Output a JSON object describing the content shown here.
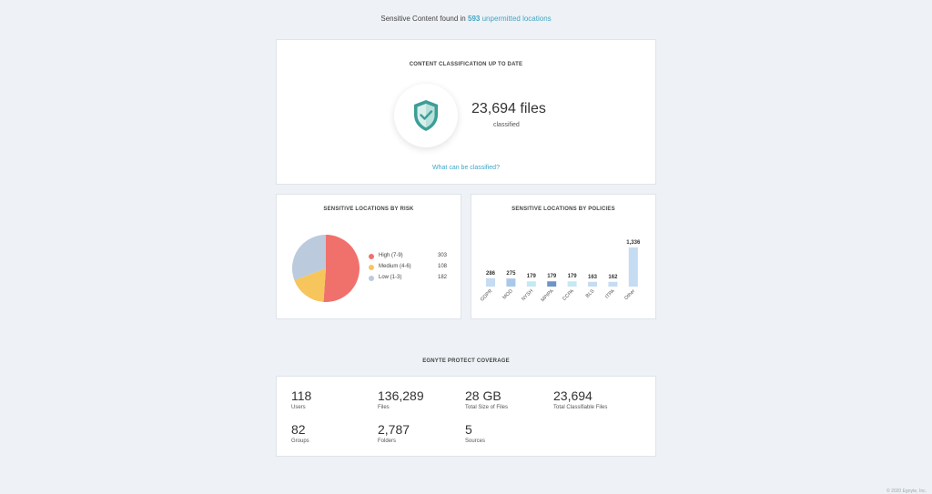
{
  "headline": {
    "prefix": "Sensitive Content found in",
    "count": "593",
    "suffix": "unpermitted locations"
  },
  "classification": {
    "title": "CONTENT CLASSIFICATION UP TO DATE",
    "files_count": "23,694 files",
    "files_sub": "classified",
    "link": "What can be classified?"
  },
  "risk": {
    "title": "SENSITIVE LOCATIONS BY RISK",
    "items": [
      {
        "label": "High (7-9)",
        "value": "303",
        "color": "#f0716b"
      },
      {
        "label": "Medium (4-6)",
        "value": "108",
        "color": "#f6c65c"
      },
      {
        "label": "Low (1-3)",
        "value": "182",
        "color": "#bccadd"
      }
    ]
  },
  "policies": {
    "title": "SENSITIVE LOCATIONS BY POLICIES"
  },
  "coverage": {
    "title": "EGNYTE PROTECT COVERAGE",
    "stats": [
      {
        "value": "118",
        "label": "Users"
      },
      {
        "value": "136,289",
        "label": "Files"
      },
      {
        "value": "28 GB",
        "label": "Total Size of Files"
      },
      {
        "value": "23,694",
        "label": "Total Classifiable Files"
      },
      {
        "value": "82",
        "label": "Groups"
      },
      {
        "value": "2,787",
        "label": "Folders"
      },
      {
        "value": "5",
        "label": "Sources"
      }
    ]
  },
  "footer": "© 2020 Egnyte, Inc.",
  "chart_data": [
    {
      "type": "pie",
      "title": "SENSITIVE LOCATIONS BY RISK",
      "categories": [
        "High (7-9)",
        "Medium (4-6)",
        "Low (1-3)"
      ],
      "values": [
        303,
        108,
        182
      ],
      "colors": [
        "#f0716b",
        "#f6c65c",
        "#bccadd"
      ],
      "legend": "right"
    },
    {
      "type": "bar",
      "title": "SENSITIVE LOCATIONS BY POLICIES",
      "categories": [
        "GDPR",
        "MOD",
        "NYSH",
        "MPIPA",
        "CCPA",
        "BLS",
        "ITPA",
        "Other"
      ],
      "values": [
        286,
        275,
        179,
        179,
        179,
        163,
        162,
        1336
      ],
      "value_labels": [
        "286",
        "275",
        "179",
        "179",
        "179",
        "163",
        "162",
        "1,336"
      ],
      "colors": [
        "#c5dcf2",
        "#a9c8ea",
        "#c5e8f3",
        "#6e94c6",
        "#c5e8f3",
        "#c5dcf2",
        "#c5dcf2",
        "#c5dcf2"
      ],
      "grid": false
    }
  ]
}
